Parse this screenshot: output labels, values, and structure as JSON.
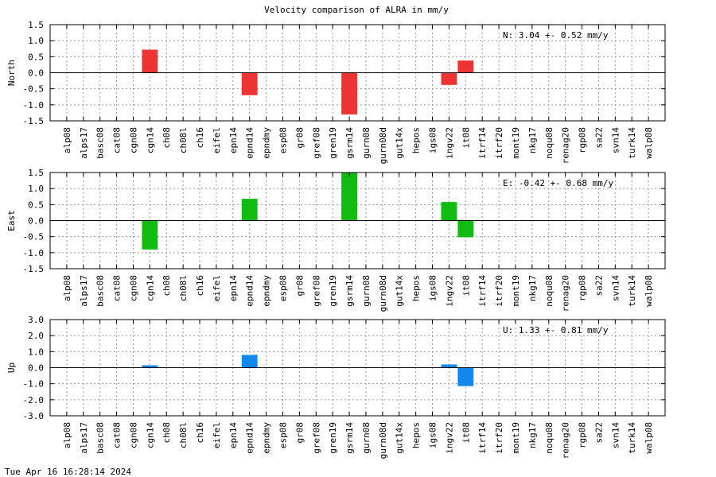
{
  "title": "Velocity comparison of ALRA in mm/y",
  "timestamp": "Tue Apr 16 16:28:14 2024",
  "chart_data": [
    {
      "type": "bar",
      "ylabel": "North",
      "annotation": "N:   3.04 +-  0.52 mm/y",
      "color": "#ee3333",
      "ylim": [
        -1.5,
        1.5
      ],
      "yticks": [
        -1.5,
        -1.0,
        -0.5,
        0.0,
        0.5,
        1.0,
        1.5
      ],
      "ytick_labels": [
        "-1.5",
        "-1.0",
        "-0.5",
        "0.0",
        "0.5",
        "1.0",
        "1.5"
      ],
      "grid": true,
      "categories": [
        "alp08",
        "alps17",
        "basc08",
        "cat08",
        "cgn08",
        "cgn14",
        "ch08",
        "ch08l",
        "ch16",
        "eifel",
        "epn14",
        "epnd14",
        "epndmy",
        "esp08",
        "gr08",
        "gref08",
        "gren19",
        "gsrm14",
        "gurn08",
        "gurn08d",
        "gut14x",
        "hepos",
        "igs08",
        "ingv22",
        "it08",
        "itrf14",
        "itrf20",
        "mont19",
        "nkg17",
        "noqu08",
        "renag20",
        "rgp08",
        "sa22",
        "svn14",
        "turk14",
        "walp08"
      ],
      "values": [
        0,
        0,
        0,
        0,
        0,
        0.72,
        0,
        0,
        0,
        0,
        0,
        -0.7,
        0,
        0,
        0,
        0,
        0,
        -1.3,
        0,
        0,
        0,
        0,
        0,
        -0.38,
        0.38,
        0,
        0,
        0,
        0,
        0,
        0,
        0,
        0,
        0,
        0,
        0
      ]
    },
    {
      "type": "bar",
      "ylabel": "East",
      "annotation": "E:  -0.42 +-  0.68 mm/y",
      "color": "#11bb11",
      "ylim": [
        -1.5,
        1.5
      ],
      "yticks": [
        -1.5,
        -1.0,
        -0.5,
        0.0,
        0.5,
        1.0,
        1.5
      ],
      "ytick_labels": [
        "-1.5",
        "-1.0",
        "-0.5",
        "0.0",
        "0.5",
        "1.0",
        "1.5"
      ],
      "grid": true,
      "categories": [
        "alp08",
        "alps17",
        "basc08",
        "cat08",
        "cgn08",
        "cgn14",
        "ch08",
        "ch08l",
        "ch16",
        "eifel",
        "epn14",
        "epnd14",
        "epndmy",
        "esp08",
        "gr08",
        "gref08",
        "gren19",
        "gsrm14",
        "gurn08",
        "gurn08d",
        "gut14x",
        "hepos",
        "igs08",
        "ingv22",
        "it08",
        "itrf14",
        "itrf20",
        "mont19",
        "nkg17",
        "noqu08",
        "renag20",
        "rgp08",
        "sa22",
        "svn14",
        "turk14",
        "walp08"
      ],
      "values": [
        0,
        0,
        0,
        0,
        0,
        -0.9,
        0,
        0,
        0,
        0,
        0,
        0.68,
        0,
        0,
        0,
        0,
        0,
        1.5,
        0,
        0,
        0,
        0,
        0,
        0.58,
        -0.52,
        0,
        0,
        0,
        0,
        0,
        0,
        0,
        0,
        0,
        0,
        0
      ]
    },
    {
      "type": "bar",
      "ylabel": "Up",
      "annotation": "U:   1.33 +-  0.81 mm/y",
      "color": "#1188ee",
      "ylim": [
        -3.0,
        3.0
      ],
      "yticks": [
        -3.0,
        -2.0,
        -1.0,
        0.0,
        1.0,
        2.0,
        3.0
      ],
      "ytick_labels": [
        "-3.0",
        "-2.0",
        "-1.0",
        "0.0",
        "1.0",
        "2.0",
        "3.0"
      ],
      "grid": true,
      "categories": [
        "alp08",
        "alps17",
        "basc08",
        "cat08",
        "cgn08",
        "cgn14",
        "ch08",
        "ch08l",
        "ch16",
        "eifel",
        "epn14",
        "epnd14",
        "epndmy",
        "esp08",
        "gr08",
        "gref08",
        "gren19",
        "gsrm14",
        "gurn08",
        "gurn08d",
        "gut14x",
        "hepos",
        "igs08",
        "ingv22",
        "it08",
        "itrf14",
        "itrf20",
        "mont19",
        "nkg17",
        "noqu08",
        "renag20",
        "rgp08",
        "sa22",
        "svn14",
        "turk14",
        "walp08"
      ],
      "values": [
        0,
        0,
        0,
        0,
        0,
        0.15,
        0,
        0,
        0,
        0,
        0,
        0.8,
        0,
        0,
        0,
        0,
        0,
        0,
        0,
        0,
        0,
        0,
        0,
        0.2,
        -1.15,
        0,
        0,
        0,
        0,
        0,
        0,
        0,
        0,
        0,
        0,
        0
      ]
    }
  ]
}
